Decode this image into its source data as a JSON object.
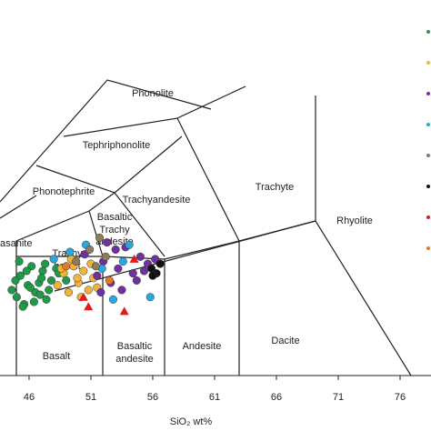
{
  "chart_data": {
    "type": "scatter",
    "xlabel": "SiO₂ wt%",
    "xlim": [
      43.65,
      78.5
    ],
    "xticks": [
      46,
      51,
      56,
      61,
      66,
      71,
      76
    ],
    "ylim": [
      0,
      15.8
    ],
    "annotations": [
      "Phonolite",
      "Tephriphonolite",
      "Phonotephrite",
      "Trachyandesite",
      "Trachyte",
      "Basaltic",
      "Trachy",
      "andesite",
      "Trachy",
      "basalt",
      "asanite",
      "Rhyolite",
      "Basalt",
      "Basaltic",
      "andesite",
      "Andesite",
      "Dacite"
    ],
    "series": [
      {
        "color": "#1e9a48",
        "marker": "circle",
        "x": [
          44.6,
          45.0,
          45.3,
          45.6,
          45.9,
          46.2,
          46.5,
          46.8,
          47.1,
          47.4,
          47.8,
          48.2,
          45.2,
          45.8,
          46.4,
          47.0,
          47.6,
          48.4,
          49.0,
          45.5,
          46.1,
          46.9,
          44.9,
          47.3
        ],
        "values": [
          3.6,
          3.3,
          4.2,
          3.0,
          3.8,
          4.6,
          3.5,
          3.9,
          4.4,
          3.2,
          4.0,
          4.5,
          4.8,
          4.4,
          3.1,
          4.1,
          3.6,
          4.3,
          4.0,
          2.9,
          3.7,
          3.4,
          4.0,
          4.7
        ]
      },
      {
        "color": "#f0b43c",
        "marker": "circle",
        "x": [
          48.3,
          48.8,
          49.2,
          49.6,
          50.0,
          50.4,
          50.8,
          51.2,
          49.4,
          50.2,
          51.0,
          48.6,
          49.9,
          51.5
        ],
        "values": [
          3.8,
          4.3,
          3.5,
          4.6,
          3.9,
          4.4,
          3.6,
          4.1,
          4.9,
          3.3,
          4.7,
          4.5,
          4.1,
          3.7
        ]
      },
      {
        "color": "#7030a0",
        "marker": "circle",
        "x": [
          51.5,
          52.0,
          52.6,
          53.2,
          53.8,
          54.4,
          55.0,
          55.6,
          52.3,
          53.5,
          54.7,
          50.5,
          51.8,
          53.0,
          55.3,
          56.2
        ],
        "values": [
          4.2,
          4.8,
          3.9,
          4.5,
          5.4,
          4.3,
          5.0,
          4.7,
          5.6,
          3.6,
          4.0,
          5.1,
          3.5,
          5.3,
          4.4,
          4.9
        ]
      },
      {
        "color": "#2aa7df",
        "marker": "circle",
        "x": [
          49.3,
          50.6,
          51.9,
          52.8,
          54.1,
          55.8,
          48.0,
          53.6
        ],
        "values": [
          5.2,
          5.5,
          4.5,
          3.2,
          5.5,
          3.3,
          4.9,
          4.8
        ]
      },
      {
        "color": "#8d7b5c",
        "marker": "circle",
        "x": [
          50.9,
          51.4,
          52.2,
          49.8,
          51.7
        ],
        "values": [
          5.3,
          4.6,
          5.0,
          4.8,
          5.8
        ]
      },
      {
        "color": "#111111",
        "marker": "circle",
        "x": [
          55.9,
          56.3,
          56.6,
          56.0
        ],
        "values": [
          4.5,
          4.3,
          4.7,
          4.2
        ]
      },
      {
        "color": "#e31a1c",
        "marker": "triangle",
        "x": [
          50.4,
          53.7,
          50.8,
          54.5
        ],
        "values": [
          3.3,
          2.7,
          2.9,
          4.9
        ]
      },
      {
        "color": "#e8771e",
        "marker": "circle",
        "x": [
          49.0,
          52.5
        ],
        "values": [
          4.6,
          4.0
        ]
      }
    ]
  }
}
